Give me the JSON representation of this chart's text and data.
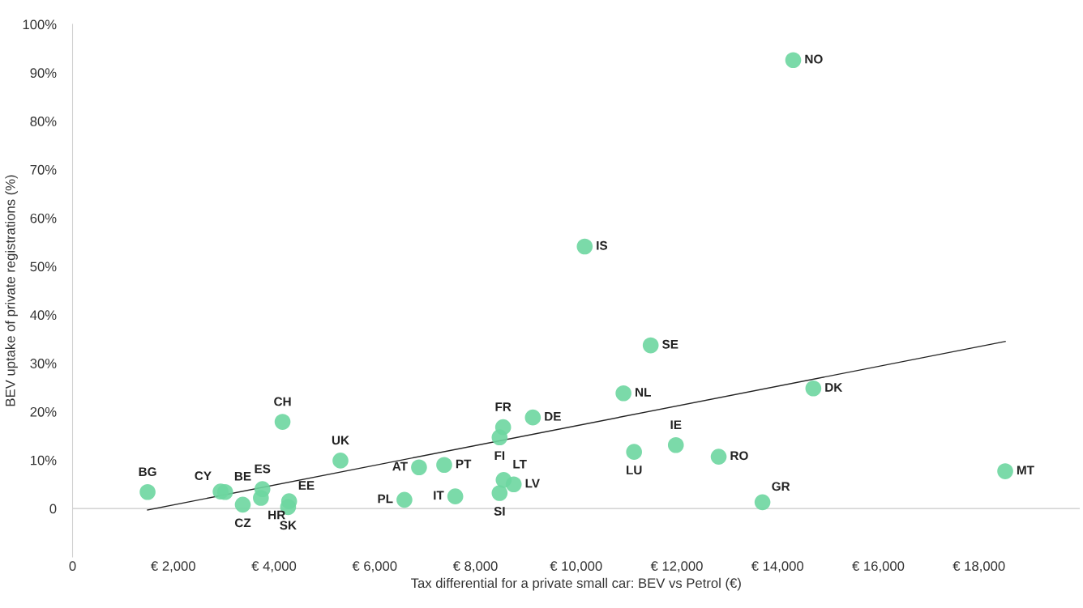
{
  "chart_data": {
    "type": "scatter",
    "xlabel": "Tax differential for a private small car: BEV vs Petrol (€)",
    "ylabel": "BEV uptake of private registrations (%)",
    "xlim": [
      0,
      20000
    ],
    "ylim": [
      -10,
      100
    ],
    "xticks": [
      0,
      {
        "value": 2000,
        "label": "€ 2,000"
      },
      {
        "value": 4000,
        "label": "€ 4,000"
      },
      {
        "value": 6000,
        "label": "€ 6,000"
      },
      {
        "value": 8000,
        "label": "€ 8,000"
      },
      {
        "value": 10000,
        "label": "€ 10,000"
      },
      {
        "value": 12000,
        "label": "€ 12,000"
      },
      {
        "value": 14000,
        "label": "€ 14,000"
      },
      {
        "value": 16000,
        "label": "€ 16,000"
      },
      {
        "value": 18000,
        "label": "€ 18,000"
      }
    ],
    "yticks": [
      0,
      {
        "value": 10,
        "label": "10%"
      },
      {
        "value": 20,
        "label": "20%"
      },
      {
        "value": 30,
        "label": "30%"
      },
      {
        "value": 40,
        "label": "40%"
      },
      {
        "value": 50,
        "label": "50%"
      },
      {
        "value": 60,
        "label": "60%"
      },
      {
        "value": 70,
        "label": "70%"
      },
      {
        "value": 80,
        "label": "80%"
      },
      {
        "value": 90,
        "label": "90%"
      },
      {
        "value": 100,
        "label": "100%"
      }
    ],
    "grid": false,
    "legend": false,
    "ref_lines": [
      {
        "axis": "y",
        "value": 0,
        "color": "#c8c8c8"
      }
    ],
    "series": [
      {
        "marker": "circle",
        "color": "#6dd6a0",
        "x": [
          1490,
          2940,
          3030,
          3770,
          3380,
          3740,
          4300,
          4280,
          4170,
          5320,
          6880,
          7380,
          6590,
          7600,
          8480,
          8550,
          8480,
          8560,
          8760,
          9140,
          10170,
          10940,
          11150,
          11480,
          11980,
          12830,
          13700,
          14310,
          14710,
          18520
        ],
        "values": [
          3.4,
          3.5,
          3.4,
          4.0,
          0.8,
          2.2,
          1.5,
          0.3,
          17.9,
          9.9,
          8.5,
          9.0,
          1.8,
          2.5,
          14.7,
          16.8,
          3.2,
          5.9,
          5.0,
          18.8,
          54.1,
          23.8,
          11.7,
          33.7,
          13.1,
          10.7,
          1.3,
          92.6,
          24.8,
          7.7
        ]
      },
      {
        "type": "line",
        "color": "#222222",
        "x": [
          1490,
          18520
        ],
        "values": [
          -0.3,
          34.5
        ]
      }
    ],
    "annotations": [
      {
        "text": "BG",
        "x": 1490,
        "y": 3.4
      },
      {
        "text": "CY",
        "x": 2940,
        "y": 3.5
      },
      {
        "text": "BE",
        "x": 3030,
        "y": 3.4
      },
      {
        "text": "ES",
        "x": 3770,
        "y": 4.0
      },
      {
        "text": "CZ",
        "x": 3380,
        "y": 0.8
      },
      {
        "text": "HR",
        "x": 3740,
        "y": 2.2
      },
      {
        "text": "EE",
        "x": 4300,
        "y": 1.5
      },
      {
        "text": "SK",
        "x": 4280,
        "y": 0.3
      },
      {
        "text": "CH",
        "x": 4170,
        "y": 17.9
      },
      {
        "text": "UK",
        "x": 5320,
        "y": 9.9
      },
      {
        "text": "AT",
        "x": 6880,
        "y": 8.5
      },
      {
        "text": "PT",
        "x": 7380,
        "y": 9.0
      },
      {
        "text": "PL",
        "x": 6590,
        "y": 1.8
      },
      {
        "text": "IT",
        "x": 7600,
        "y": 2.5
      },
      {
        "text": "FI",
        "x": 8480,
        "y": 14.7
      },
      {
        "text": "FR",
        "x": 8550,
        "y": 16.8
      },
      {
        "text": "SI",
        "x": 8480,
        "y": 3.2
      },
      {
        "text": "LT",
        "x": 8560,
        "y": 5.9
      },
      {
        "text": "LV",
        "x": 8760,
        "y": 5.0
      },
      {
        "text": "DE",
        "x": 9140,
        "y": 18.8
      },
      {
        "text": "IS",
        "x": 10170,
        "y": 54.1
      },
      {
        "text": "NL",
        "x": 10940,
        "y": 23.8
      },
      {
        "text": "LU",
        "x": 11150,
        "y": 11.7
      },
      {
        "text": "SE",
        "x": 11480,
        "y": 33.7
      },
      {
        "text": "IE",
        "x": 11980,
        "y": 13.1
      },
      {
        "text": "RO",
        "x": 12830,
        "y": 10.7
      },
      {
        "text": "GR",
        "x": 13700,
        "y": 1.3
      },
      {
        "text": "NO",
        "x": 14310,
        "y": 92.6
      },
      {
        "text": "DK",
        "x": 14710,
        "y": 24.8
      },
      {
        "text": "MT",
        "x": 18520,
        "y": 7.7
      }
    ]
  }
}
